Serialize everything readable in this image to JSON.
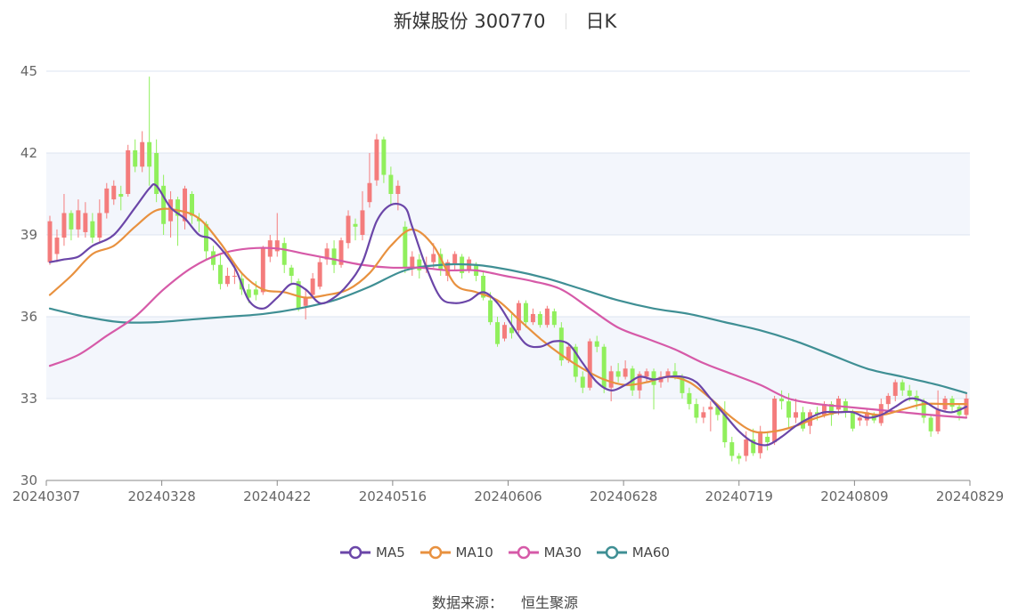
{
  "title": {
    "name": "新媒股份 300770",
    "period": "日K"
  },
  "source": {
    "label": "数据来源：",
    "value": "恒生聚源"
  },
  "colors": {
    "up": "#f47c7c",
    "down": "#90ef5c",
    "MA5": "#6b46a8",
    "MA10": "#e8913f",
    "MA30": "#d65aa8",
    "MA60": "#3f8f94",
    "band": "#f3f6fc",
    "grid": "#dde4f0"
  },
  "chart_data": {
    "type": "candlestick",
    "title": "新媒股份 300770",
    "ylim": [
      30,
      45
    ],
    "yticks": [
      30,
      33,
      36,
      39,
      42,
      45
    ],
    "xtick_labels": [
      "20240307",
      "20240328",
      "20240422",
      "20240516",
      "20240606",
      "20240628",
      "20240719",
      "20240809",
      "20240829"
    ],
    "legend": [
      "MA5",
      "MA10",
      "MA30",
      "MA60"
    ],
    "candles": [
      [
        38.0,
        39.5,
        39.7,
        37.9
      ],
      [
        38.3,
        38.9,
        39.2,
        38.0
      ],
      [
        38.9,
        39.8,
        40.5,
        38.6
      ],
      [
        39.8,
        39.2,
        39.9,
        38.8
      ],
      [
        39.2,
        39.9,
        40.3,
        38.9
      ],
      [
        39.1,
        39.8,
        40.2,
        38.9
      ],
      [
        39.5,
        38.9,
        39.8,
        38.7
      ],
      [
        38.9,
        39.8,
        40.3,
        38.7
      ],
      [
        39.8,
        40.7,
        40.9,
        39.6
      ],
      [
        40.3,
        40.8,
        41.0,
        40.1
      ],
      [
        40.5,
        40.4,
        40.8,
        39.9
      ],
      [
        40.5,
        42.1,
        42.3,
        40.4
      ],
      [
        42.1,
        41.5,
        42.5,
        41.3
      ],
      [
        41.5,
        42.4,
        42.8,
        41.3
      ],
      [
        42.4,
        41.5,
        44.8,
        40.8
      ],
      [
        42.0,
        40.5,
        42.5,
        40.2
      ],
      [
        40.8,
        39.4,
        41.2,
        39.0
      ],
      [
        39.5,
        40.3,
        40.6,
        38.9
      ],
      [
        40.3,
        39.7,
        40.4,
        38.6
      ],
      [
        39.5,
        40.7,
        40.8,
        39.2
      ],
      [
        40.5,
        39.7,
        40.6,
        39.4
      ],
      [
        39.6,
        39.5,
        39.8,
        39.1
      ],
      [
        39.4,
        38.4,
        39.5,
        38.1
      ],
      [
        38.4,
        37.9,
        38.6,
        37.7
      ],
      [
        37.9,
        37.2,
        38.3,
        37.0
      ],
      [
        37.2,
        37.5,
        37.8,
        37.1
      ],
      [
        37.5,
        37.5,
        37.9,
        37.2
      ],
      [
        37.4,
        37.0,
        37.6,
        36.8
      ],
      [
        37.0,
        36.7,
        37.2,
        36.5
      ],
      [
        37.0,
        36.8,
        37.3,
        36.6
      ],
      [
        36.9,
        38.5,
        38.6,
        36.8
      ],
      [
        38.2,
        38.8,
        39.0,
        38.0
      ],
      [
        38.4,
        38.8,
        39.8,
        38.2
      ],
      [
        38.7,
        37.9,
        38.9,
        37.6
      ],
      [
        37.8,
        37.5,
        37.9,
        37.2
      ],
      [
        37.3,
        36.3,
        37.4,
        36.2
      ],
      [
        36.4,
        36.7,
        37.0,
        35.9
      ],
      [
        36.8,
        37.4,
        37.6,
        36.7
      ],
      [
        37.1,
        38.0,
        38.2,
        37.0
      ],
      [
        38.1,
        38.5,
        38.7,
        37.9
      ],
      [
        38.5,
        37.9,
        38.8,
        37.6
      ],
      [
        37.9,
        38.8,
        38.9,
        37.8
      ],
      [
        38.7,
        39.7,
        39.9,
        38.5
      ],
      [
        39.4,
        39.3,
        39.6,
        38.8
      ],
      [
        39.0,
        39.9,
        40.6,
        38.8
      ],
      [
        40.2,
        40.9,
        42.0,
        40.0
      ],
      [
        41.0,
        42.5,
        42.7,
        40.8
      ],
      [
        42.5,
        41.2,
        42.6,
        40.9
      ],
      [
        41.2,
        40.5,
        41.5,
        40.1
      ],
      [
        40.5,
        40.8,
        41.0,
        39.9
      ],
      [
        39.3,
        37.8,
        39.5,
        37.6
      ],
      [
        37.8,
        38.2,
        38.4,
        37.5
      ],
      [
        38.1,
        37.7,
        38.3,
        37.4
      ],
      [
        37.8,
        37.9,
        38.2,
        37.6
      ],
      [
        38.0,
        38.3,
        38.7,
        37.8
      ],
      [
        38.3,
        37.7,
        38.5,
        37.5
      ],
      [
        37.5,
        38.0,
        38.1,
        37.3
      ],
      [
        37.9,
        38.3,
        38.4,
        37.7
      ],
      [
        38.2,
        37.6,
        38.3,
        37.4
      ],
      [
        37.7,
        38.1,
        38.2,
        37.6
      ],
      [
        37.9,
        37.5,
        38.0,
        37.3
      ],
      [
        37.5,
        36.7,
        37.7,
        36.6
      ],
      [
        36.6,
        35.8,
        36.9,
        35.7
      ],
      [
        35.8,
        35.0,
        36.0,
        34.9
      ],
      [
        35.2,
        35.7,
        35.8,
        35.1
      ],
      [
        35.6,
        35.4,
        36.1,
        35.2
      ],
      [
        35.5,
        36.5,
        36.6,
        35.4
      ],
      [
        36.5,
        35.8,
        36.6,
        35.6
      ],
      [
        35.8,
        36.1,
        36.3,
        35.7
      ],
      [
        36.1,
        35.7,
        36.2,
        35.6
      ],
      [
        35.7,
        36.3,
        36.4,
        35.6
      ],
      [
        36.2,
        35.7,
        36.3,
        35.6
      ],
      [
        35.6,
        34.4,
        35.8,
        34.2
      ],
      [
        34.4,
        34.9,
        35.0,
        34.3
      ],
      [
        34.9,
        33.8,
        35.0,
        33.6
      ],
      [
        33.8,
        33.4,
        34.0,
        33.2
      ],
      [
        33.4,
        35.1,
        35.2,
        33.3
      ],
      [
        35.1,
        34.9,
        35.3,
        34.7
      ],
      [
        34.9,
        33.4,
        35.0,
        33.2
      ],
      [
        33.4,
        34.0,
        34.2,
        32.9
      ],
      [
        34.0,
        33.8,
        34.3,
        33.6
      ],
      [
        33.8,
        34.1,
        34.4,
        33.7
      ],
      [
        34.1,
        33.3,
        34.2,
        33.1
      ],
      [
        33.3,
        33.9,
        34.0,
        33.0
      ],
      [
        33.8,
        34.0,
        34.1,
        33.6
      ],
      [
        34.0,
        33.5,
        34.1,
        32.6
      ],
      [
        33.6,
        33.8,
        34.0,
        33.4
      ],
      [
        33.8,
        34.0,
        34.1,
        33.6
      ],
      [
        34.0,
        33.8,
        34.3,
        33.7
      ],
      [
        33.8,
        33.2,
        33.9,
        33.0
      ],
      [
        33.2,
        32.8,
        33.4,
        32.6
      ],
      [
        32.8,
        32.3,
        33.0,
        32.1
      ],
      [
        32.3,
        32.5,
        32.7,
        32.1
      ],
      [
        32.6,
        32.7,
        32.9,
        31.8
      ],
      [
        32.7,
        32.4,
        32.8,
        32.2
      ],
      [
        32.5,
        31.4,
        32.9,
        31.2
      ],
      [
        31.4,
        30.9,
        31.6,
        30.7
      ],
      [
        30.9,
        30.8,
        31.0,
        30.6
      ],
      [
        30.9,
        31.5,
        31.8,
        30.7
      ],
      [
        31.5,
        31.0,
        31.9,
        30.9
      ],
      [
        31.0,
        31.8,
        32.0,
        30.8
      ],
      [
        31.6,
        31.4,
        31.8,
        31.1
      ],
      [
        31.4,
        33.0,
        33.1,
        31.3
      ],
      [
        33.0,
        32.9,
        33.3,
        32.6
      ],
      [
        32.9,
        32.3,
        33.2,
        31.9
      ],
      [
        32.3,
        32.5,
        33.0,
        32.1
      ],
      [
        32.5,
        31.9,
        32.7,
        31.8
      ],
      [
        32.0,
        32.5,
        32.6,
        31.7
      ],
      [
        32.5,
        32.4,
        32.7,
        32.2
      ],
      [
        32.4,
        32.8,
        32.9,
        32.3
      ],
      [
        32.8,
        32.4,
        32.9,
        32.0
      ],
      [
        32.6,
        33.0,
        33.1,
        32.4
      ],
      [
        32.9,
        32.5,
        33.0,
        32.3
      ],
      [
        32.5,
        31.9,
        32.6,
        31.8
      ],
      [
        32.2,
        32.3,
        32.4,
        32.0
      ],
      [
        32.2,
        32.5,
        32.6,
        32.0
      ],
      [
        32.4,
        32.2,
        32.5,
        32.1
      ],
      [
        32.1,
        32.8,
        33.0,
        32.0
      ],
      [
        32.8,
        33.1,
        33.2,
        32.6
      ],
      [
        33.1,
        33.6,
        33.7,
        32.9
      ],
      [
        33.6,
        33.3,
        33.7,
        33.1
      ],
      [
        33.3,
        33.1,
        33.5,
        32.9
      ],
      [
        33.1,
        32.9,
        33.3,
        32.6
      ],
      [
        32.9,
        32.3,
        33.0,
        32.1
      ],
      [
        32.3,
        31.8,
        32.4,
        31.6
      ],
      [
        31.8,
        32.6,
        33.3,
        31.7
      ],
      [
        32.6,
        33.0,
        33.1,
        32.5
      ],
      [
        33.0,
        32.7,
        33.1,
        32.5
      ],
      [
        32.7,
        32.4,
        32.8,
        32.2
      ],
      [
        32.4,
        33.0,
        33.2,
        32.3
      ]
    ],
    "ma": {
      "MA5": [
        [
          0,
          38.0
        ],
        [
          2,
          38.1
        ],
        [
          4,
          38.2
        ],
        [
          6,
          38.6
        ],
        [
          9,
          39.0
        ],
        [
          12,
          40.0
        ],
        [
          14,
          40.7
        ],
        [
          15,
          40.8
        ],
        [
          17,
          40.0
        ],
        [
          19,
          39.6
        ],
        [
          21,
          39.0
        ],
        [
          23,
          38.8
        ],
        [
          26,
          37.8
        ],
        [
          28,
          36.6
        ],
        [
          30,
          36.3
        ],
        [
          32,
          36.7
        ],
        [
          34,
          37.2
        ],
        [
          36,
          37.0
        ],
        [
          38,
          36.5
        ],
        [
          40,
          36.7
        ],
        [
          42,
          37.2
        ],
        [
          44,
          38.0
        ],
        [
          46,
          39.5
        ],
        [
          48,
          40.1
        ],
        [
          50,
          40.0
        ],
        [
          51,
          39.3
        ],
        [
          53,
          37.8
        ],
        [
          55,
          36.7
        ],
        [
          57,
          36.5
        ],
        [
          59,
          36.6
        ],
        [
          61,
          36.9
        ],
        [
          63,
          36.5
        ],
        [
          65,
          35.7
        ],
        [
          67,
          35.0
        ],
        [
          69,
          34.9
        ],
        [
          71,
          35.1
        ],
        [
          73,
          35.0
        ],
        [
          75,
          34.3
        ],
        [
          77,
          33.6
        ],
        [
          79,
          33.3
        ],
        [
          81,
          33.5
        ],
        [
          83,
          33.8
        ],
        [
          85,
          33.7
        ],
        [
          87,
          33.8
        ],
        [
          89,
          33.8
        ],
        [
          91,
          33.6
        ],
        [
          93,
          33.0
        ],
        [
          95,
          32.4
        ],
        [
          97,
          31.8
        ],
        [
          99,
          31.4
        ],
        [
          101,
          31.3
        ],
        [
          103,
          31.6
        ],
        [
          105,
          32.0
        ],
        [
          107,
          32.3
        ],
        [
          109,
          32.5
        ],
        [
          111,
          32.5
        ],
        [
          113,
          32.5
        ],
        [
          115,
          32.3
        ],
        [
          117,
          32.4
        ],
        [
          119,
          32.7
        ],
        [
          121,
          33.0
        ],
        [
          123,
          32.9
        ],
        [
          125,
          32.6
        ],
        [
          127,
          32.5
        ],
        [
          129,
          32.7
        ]
      ],
      "MA10": [
        [
          0,
          36.8
        ],
        [
          3,
          37.5
        ],
        [
          6,
          38.3
        ],
        [
          9,
          38.6
        ],
        [
          12,
          39.3
        ],
        [
          15,
          39.9
        ],
        [
          18,
          39.9
        ],
        [
          21,
          39.6
        ],
        [
          24,
          38.7
        ],
        [
          27,
          37.6
        ],
        [
          30,
          37.0
        ],
        [
          33,
          36.9
        ],
        [
          36,
          36.7
        ],
        [
          39,
          36.8
        ],
        [
          42,
          37.0
        ],
        [
          45,
          37.6
        ],
        [
          48,
          38.6
        ],
        [
          51,
          39.2
        ],
        [
          54,
          38.6
        ],
        [
          57,
          37.2
        ],
        [
          60,
          36.9
        ],
        [
          63,
          36.6
        ],
        [
          66,
          35.9
        ],
        [
          69,
          35.2
        ],
        [
          72,
          34.6
        ],
        [
          75,
          34.1
        ],
        [
          78,
          33.7
        ],
        [
          81,
          33.5
        ],
        [
          84,
          33.6
        ],
        [
          87,
          33.8
        ],
        [
          90,
          33.6
        ],
        [
          93,
          33.0
        ],
        [
          96,
          32.3
        ],
        [
          99,
          31.8
        ],
        [
          102,
          31.8
        ],
        [
          105,
          32.0
        ],
        [
          108,
          32.3
        ],
        [
          111,
          32.5
        ],
        [
          114,
          32.5
        ],
        [
          117,
          32.4
        ],
        [
          120,
          32.6
        ],
        [
          123,
          32.8
        ],
        [
          126,
          32.8
        ],
        [
          129,
          32.8
        ]
      ],
      "MA30": [
        [
          0,
          34.2
        ],
        [
          4,
          34.6
        ],
        [
          8,
          35.3
        ],
        [
          12,
          36.0
        ],
        [
          16,
          37.0
        ],
        [
          20,
          37.8
        ],
        [
          24,
          38.3
        ],
        [
          28,
          38.5
        ],
        [
          32,
          38.5
        ],
        [
          36,
          38.3
        ],
        [
          40,
          38.1
        ],
        [
          44,
          37.9
        ],
        [
          48,
          37.8
        ],
        [
          52,
          37.8
        ],
        [
          56,
          37.7
        ],
        [
          60,
          37.7
        ],
        [
          64,
          37.5
        ],
        [
          68,
          37.3
        ],
        [
          72,
          37.0
        ],
        [
          76,
          36.3
        ],
        [
          80,
          35.6
        ],
        [
          84,
          35.2
        ],
        [
          88,
          34.8
        ],
        [
          92,
          34.3
        ],
        [
          96,
          33.9
        ],
        [
          100,
          33.5
        ],
        [
          104,
          33.0
        ],
        [
          108,
          32.8
        ],
        [
          112,
          32.7
        ],
        [
          116,
          32.6
        ],
        [
          120,
          32.5
        ],
        [
          124,
          32.4
        ],
        [
          129,
          32.3
        ]
      ],
      "MA60": [
        [
          0,
          36.3
        ],
        [
          5,
          36.0
        ],
        [
          10,
          35.8
        ],
        [
          15,
          35.8
        ],
        [
          20,
          35.9
        ],
        [
          25,
          36.0
        ],
        [
          30,
          36.1
        ],
        [
          35,
          36.3
        ],
        [
          40,
          36.6
        ],
        [
          45,
          37.1
        ],
        [
          50,
          37.7
        ],
        [
          55,
          37.9
        ],
        [
          60,
          37.9
        ],
        [
          65,
          37.7
        ],
        [
          70,
          37.4
        ],
        [
          75,
          37.0
        ],
        [
          80,
          36.6
        ],
        [
          85,
          36.3
        ],
        [
          90,
          36.1
        ],
        [
          95,
          35.8
        ],
        [
          100,
          35.5
        ],
        [
          105,
          35.1
        ],
        [
          110,
          34.6
        ],
        [
          115,
          34.1
        ],
        [
          120,
          33.8
        ],
        [
          125,
          33.5
        ],
        [
          129,
          33.2
        ]
      ]
    }
  }
}
